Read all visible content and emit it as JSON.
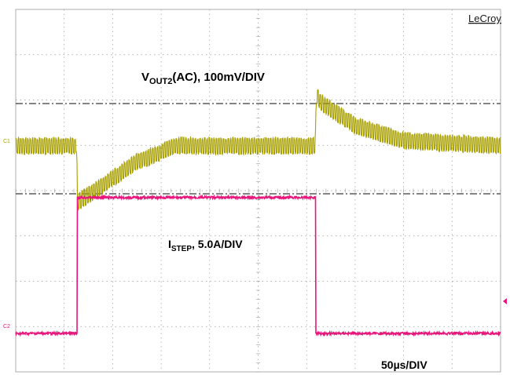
{
  "brand": "LeCroy",
  "colors": {
    "background": "#ffffff",
    "grid": "#9a9a9a",
    "cursor": "#3a3a3a",
    "ch1": "#a8a000",
    "ch2": "#e8157a",
    "trigger_marker": "#e8157a"
  },
  "labels": {
    "ch1": {
      "main": "V",
      "sub": "OUT2",
      "rest": "(AC), 100mV/DIV"
    },
    "ch2": {
      "main": "I",
      "sub": "STEP",
      "rest": ", 5.0A/DIV"
    },
    "timebase": "50µs/DIV"
  },
  "channel_tags": {
    "ch1": "C1",
    "ch2": "C2"
  },
  "chart_data": {
    "type": "line",
    "grid_on": true,
    "x_divisions": 10,
    "y_divisions": 8,
    "x": [
      0,
      1.26,
      1.27,
      2.5,
      2.98,
      3.0,
      3.3,
      4.0,
      5.0,
      6.18,
      6.2,
      6.3,
      7.0,
      8.0,
      10.0
    ],
    "series": [
      {
        "name": "VOUT2(AC)",
        "display_name": "VOUT2(AC), 100mV/DIV",
        "channel": "C1",
        "unit": "mV",
        "volts_per_div": "100mV/DIV",
        "mean_values": [
          0,
          0,
          -125,
          -35,
          -15,
          -12,
          0,
          0,
          0,
          0,
          110,
          95,
          45,
          12,
          0
        ],
        "ripple_pp": 35
      },
      {
        "name": "ISTEP",
        "display_name": "ISTEP, 5.0A/DIV",
        "channel": "C2",
        "unit": "A",
        "amps_per_div": "5.0A/DIV",
        "mean_values": [
          0,
          0,
          0,
          0,
          0,
          0,
          0,
          0,
          0,
          0,
          0,
          0,
          0,
          0,
          0
        ],
        "step": {
          "low_A": 0,
          "high_A": 15,
          "rise_div": 1.27,
          "fall_div": 6.19
        }
      }
    ],
    "timebase": "50µs/DIV"
  }
}
